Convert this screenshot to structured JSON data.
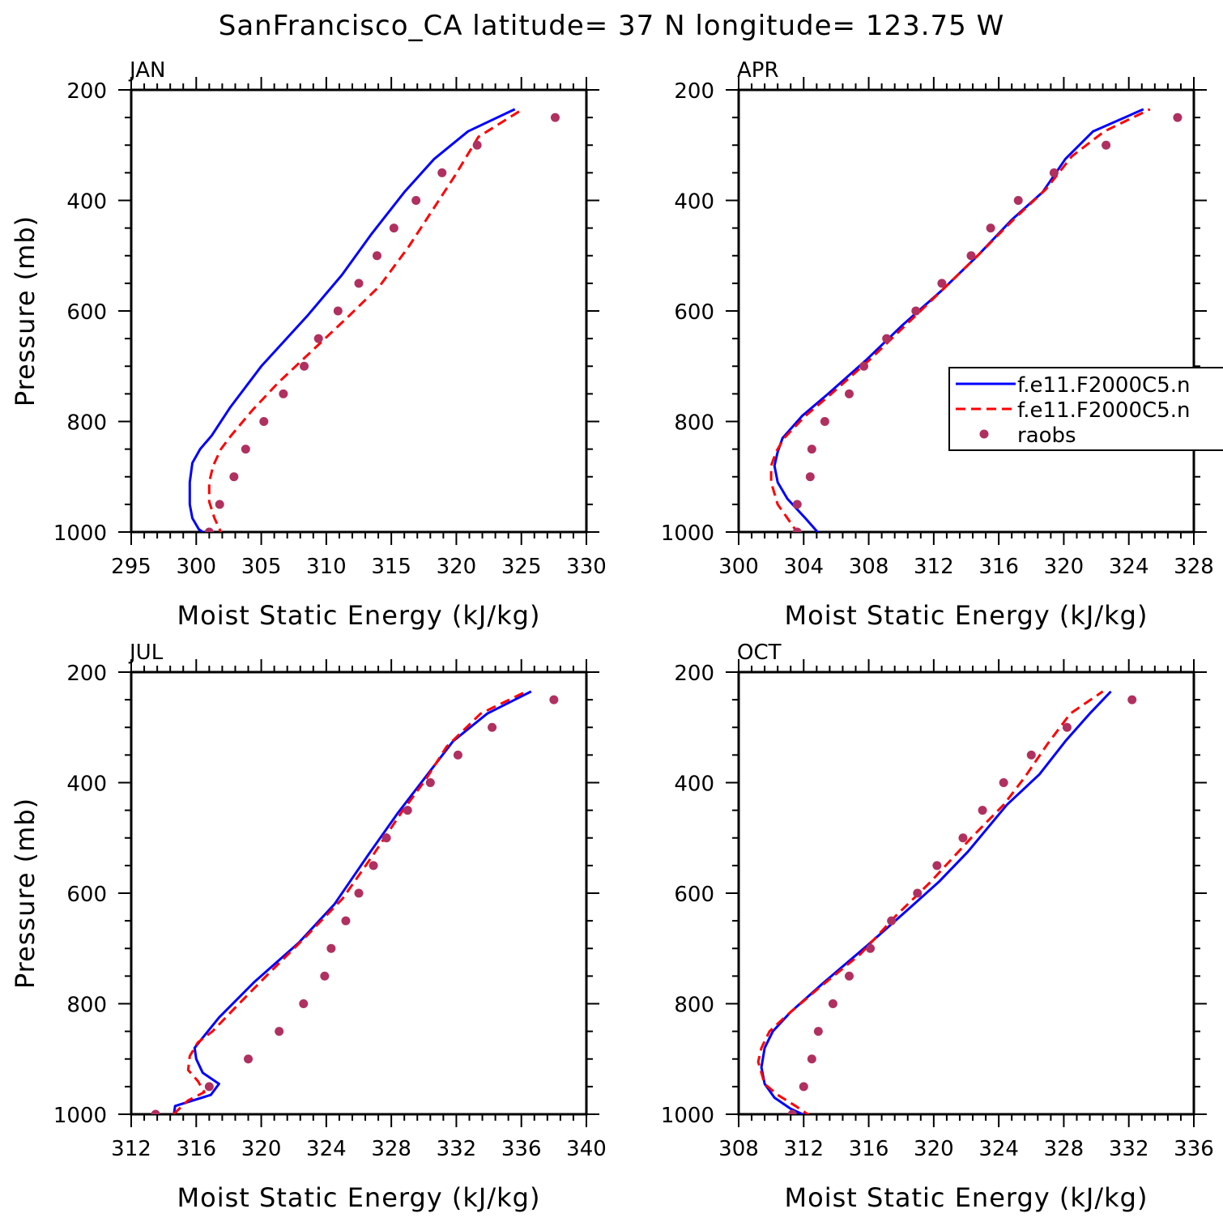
{
  "title": "SanFrancisco_CA  latitude= 37 N longitude= 123.75 W",
  "colors": {
    "model1": "#0000ff",
    "model2": "#ff0000",
    "raobs": "#b03060",
    "axis": "#000000"
  },
  "legend": {
    "panel": "APR",
    "entries": [
      {
        "label": "f.e11.F2000C5.n",
        "style": "solid"
      },
      {
        "label": "f.e11.F2000C5.n",
        "style": "dashed"
      },
      {
        "label": "raobs",
        "style": "dot"
      }
    ]
  },
  "chart_data": [
    {
      "type": "line",
      "panel_title": "JAN",
      "xlabel": "Moist Static Energy (kJ/kg)",
      "ylabel": "Pressure (mb)",
      "xlim": [
        295,
        330
      ],
      "xticks": [
        295,
        300,
        305,
        310,
        315,
        320,
        325,
        330
      ],
      "ylim": [
        1000,
        200
      ],
      "yticks": [
        200,
        400,
        600,
        800,
        1000
      ],
      "series": [
        {
          "style": "solid",
          "points": [
            [
              301.1,
              1010
            ],
            [
              300.2,
              995
            ],
            [
              299.7,
              975
            ],
            [
              299.5,
              950
            ],
            [
              299.5,
              910
            ],
            [
              299.7,
              875
            ],
            [
              300.3,
              850
            ],
            [
              301.2,
              825
            ],
            [
              302.6,
              775
            ],
            [
              305.0,
              700
            ],
            [
              308.5,
              610
            ],
            [
              311.2,
              535
            ],
            [
              313.5,
              460
            ],
            [
              316.0,
              385
            ],
            [
              318.3,
              325
            ],
            [
              320.9,
              275
            ],
            [
              324.5,
              235
            ]
          ]
        },
        {
          "style": "dashed",
          "points": [
            [
              302.1,
              1010
            ],
            [
              301.4,
              975
            ],
            [
              301.0,
              945
            ],
            [
              301.0,
              910
            ],
            [
              301.3,
              880
            ],
            [
              301.9,
              850
            ],
            [
              302.7,
              825
            ],
            [
              304.3,
              780
            ],
            [
              306.3,
              730
            ],
            [
              309.0,
              670
            ],
            [
              311.7,
              610
            ],
            [
              314.1,
              555
            ],
            [
              316.3,
              485
            ],
            [
              318.1,
              420
            ],
            [
              319.9,
              355
            ],
            [
              321.7,
              285
            ],
            [
              325.1,
              235
            ]
          ]
        },
        {
          "style": "dots",
          "points": [
            [
              327.6,
              250
            ],
            [
              321.6,
              300
            ],
            [
              318.9,
              350
            ],
            [
              316.9,
              400
            ],
            [
              315.2,
              450
            ],
            [
              313.9,
              500
            ],
            [
              312.5,
              550
            ],
            [
              310.9,
              600
            ],
            [
              309.4,
              650
            ],
            [
              308.3,
              700
            ],
            [
              306.7,
              750
            ],
            [
              305.2,
              800
            ],
            [
              303.8,
              850
            ],
            [
              302.9,
              900
            ],
            [
              301.8,
              950
            ],
            [
              301.0,
              1000
            ]
          ]
        }
      ]
    },
    {
      "type": "line",
      "panel_title": "APR",
      "xlabel": "Moist Static Energy (kJ/kg)",
      "ylabel": "",
      "xlim": [
        300,
        328
      ],
      "xticks": [
        300,
        304,
        308,
        312,
        316,
        320,
        324,
        328
      ],
      "ylim": [
        1000,
        200
      ],
      "yticks": [
        200,
        400,
        600,
        800,
        1000
      ],
      "series": [
        {
          "style": "solid",
          "points": [
            [
              305.0,
              1005
            ],
            [
              304.1,
              975
            ],
            [
              303.0,
              940
            ],
            [
              302.4,
              910
            ],
            [
              302.2,
              880
            ],
            [
              302.4,
              855
            ],
            [
              302.7,
              830
            ],
            [
              303.9,
              790
            ],
            [
              305.5,
              750
            ],
            [
              307.8,
              690
            ],
            [
              310.1,
              625
            ],
            [
              312.6,
              560
            ],
            [
              314.7,
              500
            ],
            [
              316.8,
              435
            ],
            [
              318.7,
              385
            ],
            [
              320.1,
              325
            ],
            [
              321.8,
              275
            ],
            [
              324.9,
              235
            ]
          ]
        },
        {
          "style": "dashed",
          "points": [
            [
              303.7,
              1005
            ],
            [
              303.0,
              975
            ],
            [
              302.4,
              950
            ],
            [
              302.0,
              910
            ],
            [
              302.0,
              880
            ],
            [
              302.3,
              855
            ],
            [
              302.8,
              830
            ],
            [
              304.1,
              790
            ],
            [
              305.7,
              750
            ],
            [
              308.0,
              690
            ],
            [
              310.3,
              625
            ],
            [
              312.6,
              560
            ],
            [
              314.7,
              500
            ],
            [
              316.9,
              435
            ],
            [
              318.9,
              380
            ],
            [
              320.5,
              320
            ],
            [
              322.5,
              275
            ],
            [
              325.3,
              235
            ]
          ]
        },
        {
          "style": "dots",
          "points": [
            [
              327.0,
              250
            ],
            [
              322.6,
              300
            ],
            [
              319.4,
              350
            ],
            [
              317.2,
              400
            ],
            [
              315.5,
              450
            ],
            [
              314.3,
              500
            ],
            [
              312.5,
              550
            ],
            [
              310.9,
              600
            ],
            [
              309.1,
              650
            ],
            [
              307.7,
              700
            ],
            [
              306.8,
              750
            ],
            [
              305.3,
              800
            ],
            [
              304.5,
              850
            ],
            [
              304.4,
              900
            ],
            [
              303.6,
              950
            ],
            [
              303.6,
              1000
            ]
          ]
        }
      ]
    },
    {
      "type": "line",
      "panel_title": "JUL",
      "xlabel": "Moist Static Energy (kJ/kg)",
      "ylabel": "Pressure (mb)",
      "xlim": [
        312,
        340
      ],
      "xticks": [
        312,
        316,
        320,
        324,
        328,
        332,
        336,
        340
      ],
      "ylim": [
        1000,
        200
      ],
      "yticks": [
        200,
        400,
        600,
        800,
        1000
      ],
      "series": [
        {
          "style": "solid",
          "points": [
            [
              314.6,
              1005
            ],
            [
              314.7,
              985
            ],
            [
              316.9,
              965
            ],
            [
              317.4,
              945
            ],
            [
              316.4,
              925
            ],
            [
              316.0,
              900
            ],
            [
              315.9,
              880
            ],
            [
              316.3,
              865
            ],
            [
              317.4,
              825
            ],
            [
              319.6,
              760
            ],
            [
              322.3,
              690
            ],
            [
              324.5,
              620
            ],
            [
              326.6,
              530
            ],
            [
              328.4,
              455
            ],
            [
              330.1,
              390
            ],
            [
              331.8,
              325
            ],
            [
              333.9,
              275
            ],
            [
              336.6,
              235
            ]
          ]
        },
        {
          "style": "dashed",
          "points": [
            [
              314.6,
              1000
            ],
            [
              315.5,
              975
            ],
            [
              316.5,
              960
            ],
            [
              316.1,
              940
            ],
            [
              315.5,
              920
            ],
            [
              315.6,
              895
            ],
            [
              316.1,
              870
            ],
            [
              317.0,
              850
            ],
            [
              318.3,
              810
            ],
            [
              320.3,
              750
            ],
            [
              322.7,
              680
            ],
            [
              325.0,
              610
            ],
            [
              326.9,
              530
            ],
            [
              328.6,
              455
            ],
            [
              330.1,
              395
            ],
            [
              331.4,
              335
            ],
            [
              333.5,
              275
            ],
            [
              336.3,
              235
            ]
          ]
        },
        {
          "style": "dots",
          "points": [
            [
              338.0,
              250
            ],
            [
              334.2,
              300
            ],
            [
              332.1,
              350
            ],
            [
              330.4,
              400
            ],
            [
              329.0,
              450
            ],
            [
              327.7,
              500
            ],
            [
              326.9,
              550
            ],
            [
              326.0,
              600
            ],
            [
              325.2,
              650
            ],
            [
              324.3,
              700
            ],
            [
              323.9,
              750
            ],
            [
              322.6,
              800
            ],
            [
              321.1,
              850
            ],
            [
              319.2,
              900
            ],
            [
              316.8,
              950
            ],
            [
              313.5,
              1000
            ]
          ]
        }
      ]
    },
    {
      "type": "line",
      "panel_title": "OCT",
      "xlabel": "Moist Static Energy (kJ/kg)",
      "ylabel": "",
      "xlim": [
        308,
        336
      ],
      "xticks": [
        308,
        312,
        316,
        320,
        324,
        328,
        332,
        336
      ],
      "ylim": [
        1000,
        200
      ],
      "yticks": [
        200,
        400,
        600,
        800,
        1000
      ],
      "series": [
        {
          "style": "solid",
          "points": [
            [
              312.3,
              1005
            ],
            [
              311.2,
              990
            ],
            [
              310.2,
              970
            ],
            [
              309.6,
              945
            ],
            [
              309.4,
              915
            ],
            [
              309.6,
              880
            ],
            [
              310.1,
              850
            ],
            [
              311.2,
              815
            ],
            [
              313.3,
              760
            ],
            [
              315.9,
              695
            ],
            [
              318.4,
              630
            ],
            [
              320.3,
              580
            ],
            [
              322.1,
              525
            ],
            [
              324.5,
              440
            ],
            [
              326.5,
              385
            ],
            [
              328.1,
              325
            ],
            [
              329.6,
              275
            ],
            [
              330.9,
              235
            ]
          ]
        },
        {
          "style": "dashed",
          "points": [
            [
              312.5,
              1005
            ],
            [
              311.5,
              985
            ],
            [
              310.4,
              965
            ],
            [
              309.6,
              945
            ],
            [
              309.2,
              905
            ],
            [
              309.4,
              880
            ],
            [
              309.9,
              850
            ],
            [
              311.0,
              820
            ],
            [
              313.0,
              770
            ],
            [
              315.5,
              710
            ],
            [
              317.7,
              640
            ],
            [
              319.8,
              580
            ],
            [
              322.3,
              500
            ],
            [
              324.3,
              440
            ],
            [
              325.6,
              390
            ],
            [
              327.0,
              330
            ],
            [
              328.4,
              275
            ],
            [
              330.4,
              235
            ]
          ]
        },
        {
          "style": "dots",
          "points": [
            [
              332.2,
              250
            ],
            [
              328.2,
              300
            ],
            [
              326.0,
              350
            ],
            [
              324.3,
              400
            ],
            [
              323.0,
              450
            ],
            [
              321.8,
              500
            ],
            [
              320.2,
              550
            ],
            [
              319.0,
              600
            ],
            [
              317.4,
              650
            ],
            [
              316.1,
              700
            ],
            [
              314.8,
              750
            ],
            [
              313.8,
              800
            ],
            [
              312.9,
              850
            ],
            [
              312.5,
              900
            ],
            [
              312.0,
              950
            ],
            [
              311.3,
              1000
            ]
          ]
        }
      ]
    }
  ]
}
